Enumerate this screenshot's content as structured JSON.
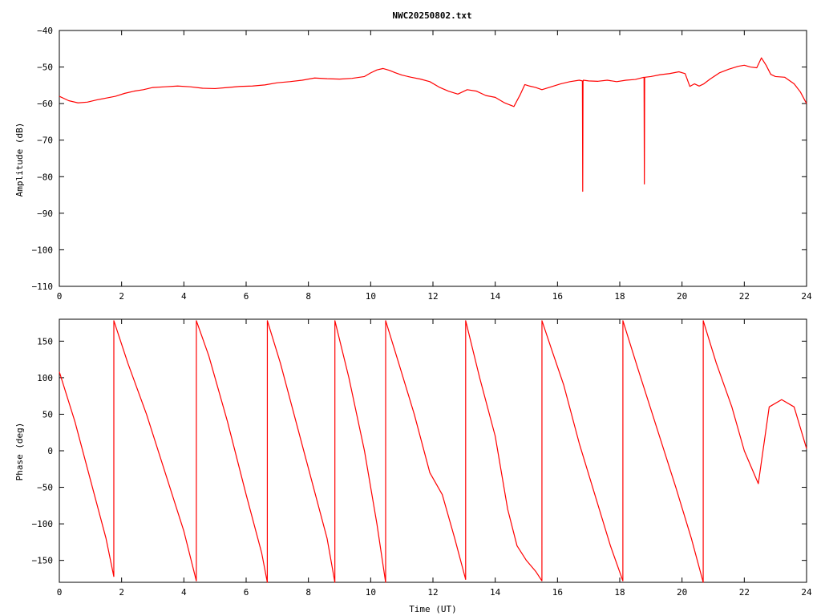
{
  "chart_data": [
    {
      "type": "line",
      "title": "NWC20250802.txt",
      "xlabel": "",
      "ylabel": "Amplitude (dB)",
      "xlim": [
        0,
        24
      ],
      "ylim": [
        -110,
        -40
      ],
      "xticks": [
        0,
        2,
        4,
        6,
        8,
        10,
        12,
        14,
        16,
        18,
        20,
        22,
        24
      ],
      "yticks": [
        -110,
        -100,
        -90,
        -80,
        -70,
        -60,
        -50,
        -40
      ],
      "grid": false,
      "legend": "none",
      "series": [
        {
          "color": "#ff0000",
          "x": [
            0,
            0.3,
            0.6,
            0.9,
            1.2,
            1.5,
            1.8,
            2.1,
            2.4,
            2.7,
            3.0,
            3.4,
            3.8,
            4.2,
            4.6,
            5.0,
            5.4,
            5.8,
            6.2,
            6.6,
            7.0,
            7.4,
            7.8,
            8.2,
            8.6,
            9.0,
            9.4,
            9.8,
            10.0,
            10.2,
            10.4,
            10.6,
            10.8,
            11.0,
            11.3,
            11.6,
            11.9,
            12.2,
            12.5,
            12.8,
            13.1,
            13.4,
            13.7,
            14.0,
            14.3,
            14.6,
            14.8,
            14.95,
            15.1,
            15.3,
            15.5,
            15.8,
            16.1,
            16.4,
            16.7,
            16.8,
            16.81,
            16.82,
            16.83,
            17.0,
            17.3,
            17.6,
            17.9,
            18.2,
            18.5,
            18.78,
            18.79,
            18.8,
            18.81,
            19.0,
            19.3,
            19.6,
            19.9,
            20.1,
            20.25,
            20.4,
            20.55,
            20.7,
            20.9,
            21.2,
            21.5,
            21.8,
            22.0,
            22.2,
            22.4,
            22.55,
            22.7,
            22.85,
            23.0,
            23.3,
            23.6,
            23.8,
            24.0
          ],
          "y": [
            -58,
            -59.2,
            -59.8,
            -59.6,
            -59.0,
            -58.5,
            -58.0,
            -57.2,
            -56.6,
            -56.2,
            -55.6,
            -55.4,
            -55.2,
            -55.4,
            -55.8,
            -55.9,
            -55.6,
            -55.3,
            -55.2,
            -54.9,
            -54.3,
            -54.0,
            -53.6,
            -53.0,
            -53.2,
            -53.3,
            -53.1,
            -52.6,
            -51.6,
            -50.8,
            -50.4,
            -50.9,
            -51.6,
            -52.2,
            -52.8,
            -53.3,
            -54.0,
            -55.5,
            -56.6,
            -57.4,
            -56.2,
            -56.6,
            -57.8,
            -58.3,
            -59.8,
            -60.8,
            -57.6,
            -54.8,
            -55.2,
            -55.6,
            -56.2,
            -55.4,
            -54.6,
            -54.0,
            -53.6,
            -53.8,
            -84.0,
            -54.0,
            -53.6,
            -53.8,
            -53.9,
            -53.6,
            -54.0,
            -53.6,
            -53.4,
            -52.8,
            -82.0,
            -53.0,
            -52.8,
            -52.6,
            -52.1,
            -51.8,
            -51.3,
            -51.8,
            -55.3,
            -54.6,
            -55.2,
            -54.6,
            -53.3,
            -51.6,
            -50.6,
            -49.8,
            -49.5,
            -50.0,
            -50.2,
            -47.5,
            -49.5,
            -52.0,
            -52.6,
            -52.8,
            -54.6,
            -56.8,
            -60.0
          ]
        }
      ]
    },
    {
      "type": "line",
      "title": "",
      "xlabel": "Time (UT)",
      "ylabel": "Phase (deg)",
      "xlim": [
        0,
        24
      ],
      "ylim": [
        -180,
        180
      ],
      "xticks": [
        0,
        2,
        4,
        6,
        8,
        10,
        12,
        14,
        16,
        18,
        20,
        22,
        24
      ],
      "yticks": [
        -150,
        -100,
        -50,
        0,
        50,
        100,
        150
      ],
      "grid": false,
      "legend": "none",
      "series": [
        {
          "color": "#ff0000",
          "x": [
            0,
            0.5,
            1.0,
            1.5,
            1.75,
            1.751,
            2.2,
            2.8,
            3.4,
            4.0,
            4.4,
            4.401,
            4.8,
            5.4,
            6.0,
            6.5,
            6.68,
            6.681,
            7.1,
            7.6,
            8.1,
            8.6,
            8.85,
            8.851,
            9.3,
            9.8,
            10.2,
            10.48,
            10.481,
            10.9,
            11.4,
            11.9,
            12.3,
            12.7,
            13.05,
            13.051,
            13.5,
            14.0,
            14.4,
            14.7,
            15.0,
            15.3,
            15.5,
            15.501,
            15.8,
            16.2,
            16.7,
            17.2,
            17.7,
            18.1,
            18.101,
            18.6,
            19.2,
            19.8,
            20.3,
            20.68,
            20.681,
            21.1,
            21.6,
            22.0,
            22.2,
            22.45,
            22.8,
            23.2,
            23.6,
            24.0
          ],
          "y": [
            108,
            40,
            -40,
            -120,
            -172,
            178,
            120,
            50,
            -30,
            -110,
            -178,
            178,
            130,
            40,
            -60,
            -140,
            -180,
            178,
            120,
            40,
            -40,
            -120,
            -180,
            178,
            100,
            0,
            -100,
            -180,
            178,
            120,
            50,
            -30,
            -60,
            -120,
            -176,
            178,
            100,
            20,
            -80,
            -130,
            -150,
            -165,
            -178,
            178,
            140,
            90,
            10,
            -60,
            -130,
            -178,
            178,
            110,
            30,
            -50,
            -120,
            -180,
            178,
            120,
            60,
            0,
            -20,
            -45,
            60,
            70,
            60,
            3
          ]
        }
      ]
    }
  ]
}
